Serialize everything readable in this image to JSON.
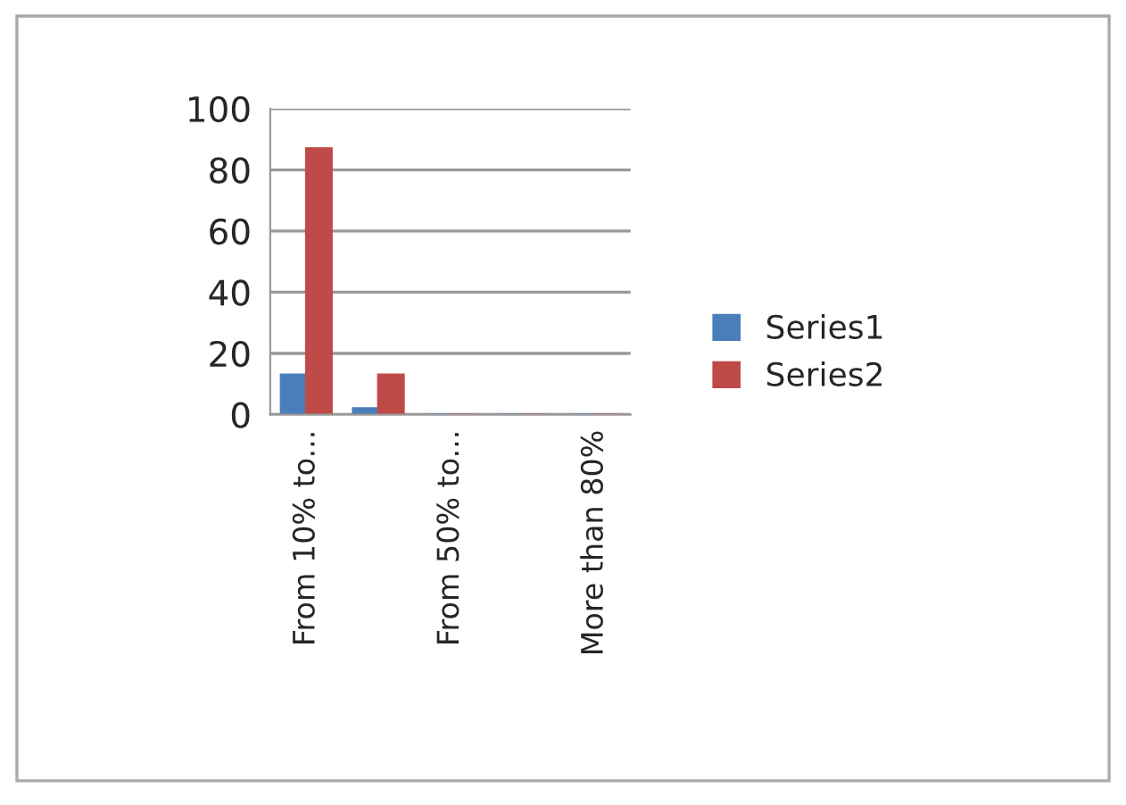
{
  "chart_data": {
    "type": "bar",
    "categories": [
      "From 10% to...",
      null,
      "From 50% to...",
      null,
      "More than 80%"
    ],
    "series": [
      {
        "name": "Series1",
        "color": "#4a7ebb",
        "values": [
          13,
          2,
          0,
          0,
          0
        ]
      },
      {
        "name": "Series2",
        "color": "#be4b48",
        "values": [
          87,
          13,
          0,
          0,
          0
        ]
      }
    ],
    "ylim": [
      0,
      100
    ],
    "yticks": [
      0,
      20,
      40,
      60,
      80,
      100
    ],
    "grid": "y",
    "legend": "right"
  }
}
